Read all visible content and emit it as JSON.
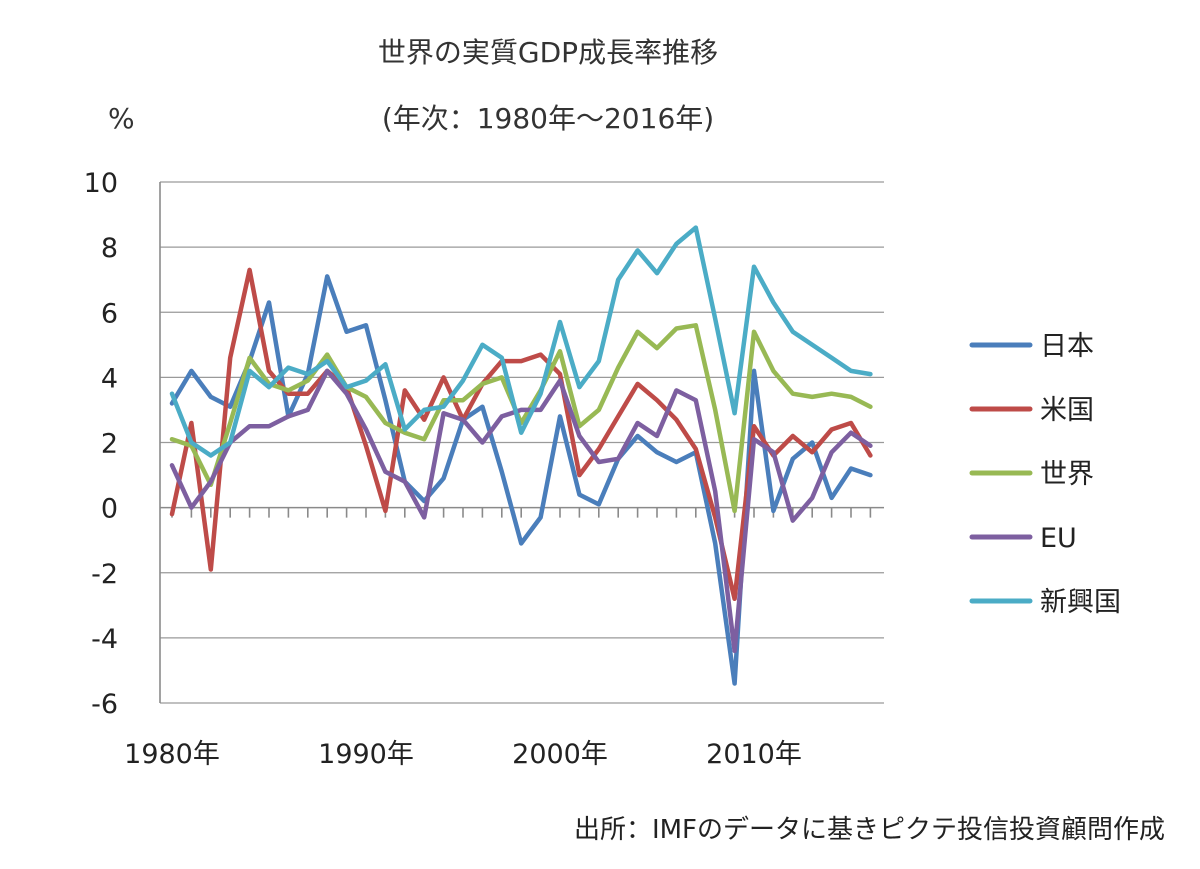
{
  "chart_data": {
    "type": "line",
    "title": "世界の実質GDP成長率推移",
    "subtitle": "(年次：1980年～2016年)",
    "ylabel": "%",
    "source": "出所：IMFのデータに基きピクテ投信投資顧問作成",
    "ylim": [
      -6,
      10
    ],
    "yticks": [
      "10",
      "8",
      "6",
      "4",
      "2",
      "0",
      "-2",
      "-4",
      "-6"
    ],
    "x": [
      1980,
      1981,
      1982,
      1983,
      1984,
      1985,
      1986,
      1987,
      1988,
      1989,
      1990,
      1991,
      1992,
      1993,
      1994,
      1995,
      1996,
      1997,
      1998,
      1999,
      2000,
      2001,
      2002,
      2003,
      2004,
      2005,
      2006,
      2007,
      2008,
      2009,
      2010,
      2011,
      2012,
      2013,
      2014,
      2015,
      2016
    ],
    "xticks": [
      "1980年",
      "1990年",
      "2000年",
      "2010年"
    ],
    "grid": true,
    "legend_position": "right",
    "series": [
      {
        "name": "日本",
        "color": "#4a7ebb",
        "values": [
          3.2,
          4.2,
          3.4,
          3.1,
          4.5,
          6.3,
          2.8,
          4.1,
          7.1,
          5.4,
          5.6,
          3.3,
          0.8,
          0.2,
          0.9,
          2.7,
          3.1,
          1.1,
          -1.1,
          -0.3,
          2.8,
          0.4,
          0.1,
          1.5,
          2.2,
          1.7,
          1.4,
          1.7,
          -1.1,
          -5.4,
          4.2,
          -0.1,
          1.5,
          2.0,
          0.3,
          1.2,
          1.0
        ]
      },
      {
        "name": "米国",
        "color": "#be4b48",
        "values": [
          -0.2,
          2.6,
          -1.9,
          4.6,
          7.3,
          4.2,
          3.5,
          3.5,
          4.2,
          3.7,
          1.9,
          -0.1,
          3.6,
          2.7,
          4.0,
          2.7,
          3.8,
          4.5,
          4.5,
          4.7,
          4.1,
          1.0,
          1.8,
          2.8,
          3.8,
          3.3,
          2.7,
          1.8,
          -0.3,
          -2.8,
          2.5,
          1.6,
          2.2,
          1.7,
          2.4,
          2.6,
          1.6
        ]
      },
      {
        "name": "世界",
        "color": "#98b954",
        "values": [
          2.1,
          1.9,
          0.7,
          2.6,
          4.6,
          3.8,
          3.6,
          3.9,
          4.7,
          3.7,
          3.4,
          2.6,
          2.3,
          2.1,
          3.3,
          3.3,
          3.8,
          4.0,
          2.6,
          3.6,
          4.8,
          2.5,
          3.0,
          4.3,
          5.4,
          4.9,
          5.5,
          5.6,
          3.0,
          -0.1,
          5.4,
          4.2,
          3.5,
          3.4,
          3.5,
          3.4,
          3.1
        ]
      },
      {
        "name": "EU",
        "color": "#7d5fa0",
        "values": [
          1.3,
          0.0,
          0.8,
          2.0,
          2.5,
          2.5,
          2.8,
          3.0,
          4.2,
          3.5,
          2.4,
          1.1,
          0.8,
          -0.3,
          2.9,
          2.7,
          2.0,
          2.8,
          3.0,
          3.0,
          3.9,
          2.2,
          1.4,
          1.5,
          2.6,
          2.2,
          3.6,
          3.3,
          0.5,
          -4.4,
          2.1,
          1.7,
          -0.4,
          0.3,
          1.7,
          2.3,
          1.9
        ]
      },
      {
        "name": "新興国",
        "color": "#4bacc6",
        "values": [
          3.5,
          2.0,
          1.6,
          2.0,
          4.2,
          3.7,
          4.3,
          4.1,
          4.5,
          3.7,
          3.9,
          4.4,
          2.4,
          3.0,
          3.1,
          3.9,
          5.0,
          4.6,
          2.3,
          3.5,
          5.7,
          3.7,
          4.5,
          7.0,
          7.9,
          7.2,
          8.1,
          8.6,
          5.8,
          2.9,
          7.4,
          6.3,
          5.4,
          5.0,
          4.6,
          4.2,
          4.1
        ]
      }
    ]
  }
}
